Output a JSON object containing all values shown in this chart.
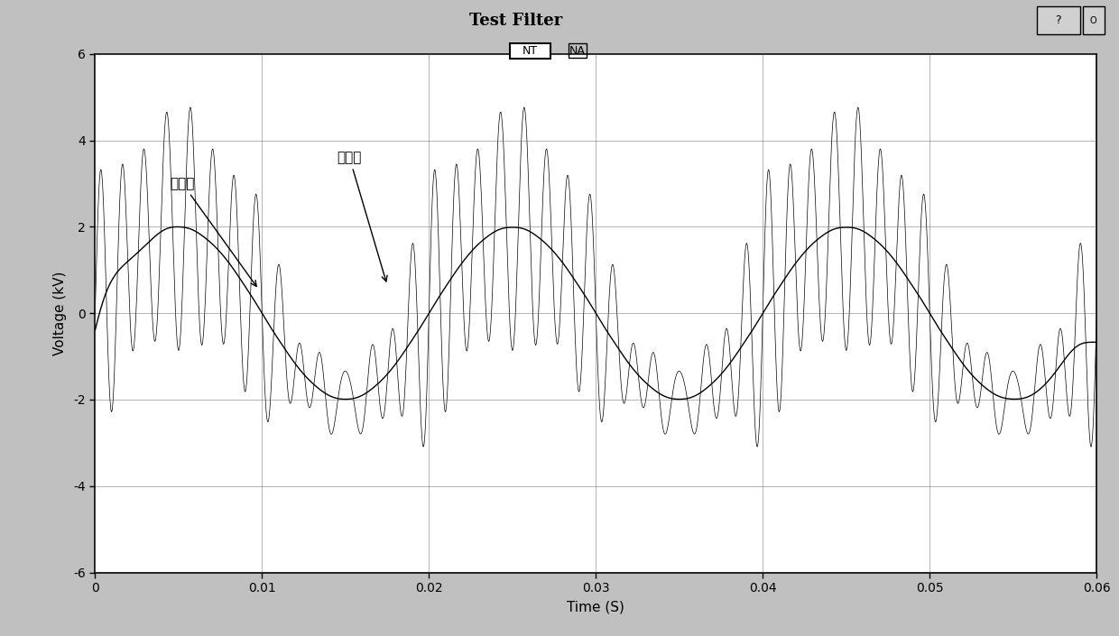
{
  "title": "Test Filter",
  "xlabel": "Time (S)",
  "ylabel": "Voltage (kV)",
  "xlim": [
    0,
    0.06
  ],
  "ylim": [
    -6,
    6
  ],
  "yticks": [
    -6,
    -4,
    -2,
    0,
    2,
    4,
    6
  ],
  "xticks": [
    0,
    0.01,
    0.02,
    0.03,
    0.04,
    0.05,
    0.06
  ],
  "label_NT": "NT",
  "label_NA": "NA",
  "annotation_before": "滤波前",
  "annotation_after": "滤波后",
  "bg_outer": "#c0c0c0",
  "bg_title": "#c8c8c8",
  "bg_plot": "#ffffff",
  "line_color": "#000000",
  "fundamental_freq": 50,
  "noise_freq": 750,
  "sample_points": 6000,
  "duration": 0.06,
  "amp_fund": 2.0,
  "amp_noise": 2.2,
  "amp_filtered": 2.0,
  "filter_smooth": 0.8
}
